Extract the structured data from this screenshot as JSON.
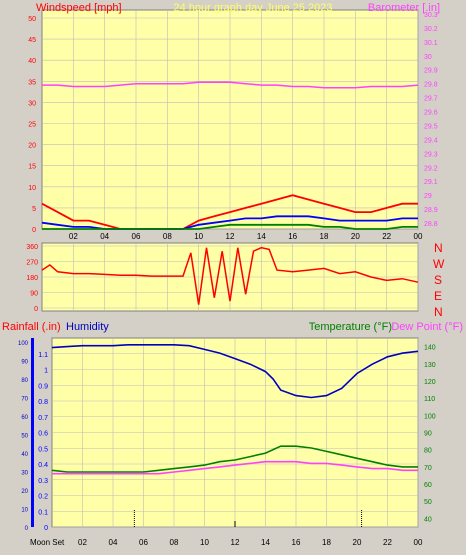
{
  "header": {
    "left_title": "Windspeed [mph]",
    "center_title": "24 hour graph day   June 25 2023",
    "right_title": "Barometer [.in]"
  },
  "bottom_header": {
    "rainfall_label": "Rainfall (.in)",
    "humidity_label": "Humidity",
    "temperature_label": "Temperature (°F)",
    "dewpoint_label": "Dew Point (°F)"
  },
  "direction_labels": [
    "N",
    "W",
    "S",
    "E",
    "N"
  ],
  "moon_label": "Moon Set",
  "colors": {
    "window_bg": "#d4d0c8",
    "plot_bg": "#ffffa8",
    "grid": "#bdbdbd",
    "wind_speed": "#ff0000",
    "wind_avg": "#0000ff",
    "wind_low": "#008000",
    "barometer": "#ff40ff",
    "direction": "#ff0000",
    "humidity": "#0000c0",
    "temperature": "#008000",
    "dewpoint": "#ff40ff",
    "rain_axis": "#0000ff",
    "left_axis_text": "#ff0000"
  },
  "chart_data": [
    {
      "type": "line",
      "title": "24 hour graph day   June 25 2023",
      "xlabel": "",
      "ylabel": "Windspeed [mph]",
      "y2label": "Barometer [.in]",
      "x_ticks": [
        "02",
        "04",
        "06",
        "08",
        "10",
        "12",
        "14",
        "16",
        "18",
        "20",
        "22",
        "00"
      ],
      "x_range": [
        0,
        24
      ],
      "ylim": [
        0,
        50
      ],
      "y_ticks": [
        0,
        5,
        10,
        15,
        20,
        25,
        30,
        35,
        40,
        45,
        50
      ],
      "y2lim": [
        28.8,
        30.3
      ],
      "y2_ticks": [
        "28.8",
        "28.9",
        "29",
        "29.1",
        "29.2",
        "29.3",
        "29.4",
        "29.5",
        "29.6",
        "29.7",
        "29.8",
        "29.9",
        "30",
        "30.1",
        "30.2",
        "30.3"
      ],
      "grid": true,
      "series": [
        {
          "axis": "y2",
          "x": [
            0,
            1,
            2,
            3,
            4,
            5,
            6,
            7,
            8,
            9,
            10,
            11,
            12,
            13,
            14,
            15,
            16,
            17,
            18,
            19,
            20,
            21,
            22,
            23,
            24
          ],
          "values": [
            29.79,
            29.79,
            29.78,
            29.78,
            29.78,
            29.79,
            29.8,
            29.8,
            29.8,
            29.8,
            29.81,
            29.81,
            29.81,
            29.8,
            29.79,
            29.79,
            29.78,
            29.78,
            29.77,
            29.77,
            29.77,
            29.78,
            29.78,
            29.78,
            29.79
          ]
        },
        {
          "axis": "y",
          "x": [
            0,
            1,
            2,
            3,
            4,
            5,
            6,
            7,
            8,
            9,
            10,
            11,
            12,
            13,
            14,
            15,
            16,
            17,
            18,
            19,
            20,
            21,
            22,
            23,
            24
          ],
          "values": [
            6,
            4,
            2,
            2,
            1,
            0,
            0,
            0,
            0,
            0,
            2,
            3,
            4,
            5,
            6,
            7,
            8,
            7,
            6,
            5,
            4,
            4,
            5,
            6,
            6
          ]
        },
        {
          "axis": "y",
          "x": [
            0,
            1,
            2,
            3,
            4,
            5,
            6,
            7,
            8,
            9,
            10,
            11,
            12,
            13,
            14,
            15,
            16,
            17,
            18,
            19,
            20,
            21,
            22,
            23,
            24
          ],
          "values": [
            1.5,
            1,
            0.5,
            0.5,
            0,
            0,
            0,
            0,
            0,
            0,
            1,
            1.5,
            2,
            2.5,
            2.5,
            3,
            3,
            3,
            2.5,
            2,
            2,
            2,
            2,
            2.5,
            2.5
          ]
        },
        {
          "axis": "y",
          "x": [
            0,
            1,
            2,
            3,
            4,
            5,
            6,
            7,
            8,
            9,
            10,
            11,
            12,
            13,
            14,
            15,
            16,
            17,
            18,
            19,
            20,
            21,
            22,
            23,
            24
          ],
          "values": [
            0,
            0,
            0,
            0,
            0,
            0,
            0,
            0,
            0,
            0,
            0,
            0.5,
            1,
            1,
            1,
            1,
            1,
            1,
            0.5,
            0.5,
            0,
            0,
            0,
            0.5,
            0.5
          ]
        }
      ]
    },
    {
      "type": "line",
      "title": "",
      "ylabel": "",
      "x_range": [
        0,
        24
      ],
      "ylim": [
        0,
        360
      ],
      "y_ticks": [
        0,
        90,
        180,
        270,
        360
      ],
      "grid": true,
      "series": [
        {
          "x": [
            0,
            0.5,
            1,
            2,
            3,
            4,
            5,
            6,
            7,
            8,
            9,
            9.5,
            10,
            10.5,
            11,
            11.5,
            12,
            12.5,
            13,
            13.5,
            14,
            14.5,
            15,
            16,
            17,
            18,
            19,
            20,
            21,
            22,
            23,
            24
          ],
          "values": [
            220,
            250,
            210,
            200,
            200,
            195,
            190,
            190,
            185,
            185,
            185,
            320,
            20,
            350,
            60,
            330,
            40,
            350,
            80,
            330,
            350,
            340,
            220,
            210,
            220,
            230,
            200,
            210,
            180,
            160,
            170,
            150
          ]
        }
      ]
    },
    {
      "type": "line",
      "title": "",
      "ylabel": "Rainfall (.in)",
      "y2label": "Temperature (°F)",
      "x_ticks": [
        "02",
        "04",
        "06",
        "08",
        "10",
        "12",
        "14",
        "16",
        "18",
        "20",
        "22",
        "00"
      ],
      "x_range": [
        0,
        24
      ],
      "ylim": [
        0,
        1.2
      ],
      "y_ticks": [
        0,
        0.1,
        0.2,
        0.3,
        0.4,
        0.5,
        0.6,
        0.7,
        0.8,
        0.9,
        1,
        1.1
      ],
      "humidity_lim": [
        0,
        100
      ],
      "humidity_ticks": [
        0,
        10,
        20,
        30,
        40,
        50,
        60,
        70,
        80,
        90,
        100
      ],
      "y2lim": [
        35,
        145
      ],
      "y2_ticks": [
        40,
        50,
        60,
        70,
        80,
        90,
        100,
        110,
        120,
        130,
        140
      ],
      "grid": true,
      "series": [
        {
          "name": "Humidity",
          "axis": "humidity",
          "x": [
            0,
            1,
            2,
            3,
            4,
            5,
            6,
            7,
            8,
            9,
            10,
            11,
            12,
            13,
            14,
            14.5,
            15,
            16,
            17,
            18,
            19,
            20,
            21,
            22,
            23,
            24
          ],
          "values": [
            97,
            97.5,
            98,
            98,
            98,
            98.5,
            98.5,
            98.5,
            98.5,
            98,
            96,
            94,
            91,
            88,
            84,
            80,
            74,
            71,
            70,
            71,
            75,
            83,
            88,
            92,
            94,
            95
          ]
        },
        {
          "name": "Temperature (°F)",
          "axis": "y2",
          "x": [
            0,
            1,
            2,
            3,
            4,
            5,
            6,
            7,
            8,
            9,
            10,
            11,
            12,
            13,
            14,
            15,
            16,
            17,
            18,
            19,
            20,
            21,
            22,
            23,
            24
          ],
          "values": [
            68,
            67,
            67,
            67,
            67,
            67,
            67,
            68,
            69,
            70,
            71,
            73,
            74,
            76,
            78,
            82,
            82,
            81,
            79,
            77,
            75,
            73,
            71,
            70,
            70
          ]
        },
        {
          "name": "Dew Point (°F)",
          "axis": "y2",
          "x": [
            0,
            1,
            2,
            3,
            4,
            5,
            6,
            7,
            8,
            9,
            10,
            11,
            12,
            13,
            14,
            15,
            16,
            17,
            18,
            19,
            20,
            21,
            22,
            23,
            24
          ],
          "values": [
            66,
            66,
            66,
            66,
            66,
            66,
            66,
            66,
            67,
            68,
            69,
            70,
            71,
            72,
            73,
            73,
            73,
            72,
            72,
            71,
            70,
            69,
            69,
            68,
            68
          ]
        }
      ],
      "moon_set_markers": [
        5.4,
        20.3
      ],
      "noon_marker": 12
    }
  ]
}
